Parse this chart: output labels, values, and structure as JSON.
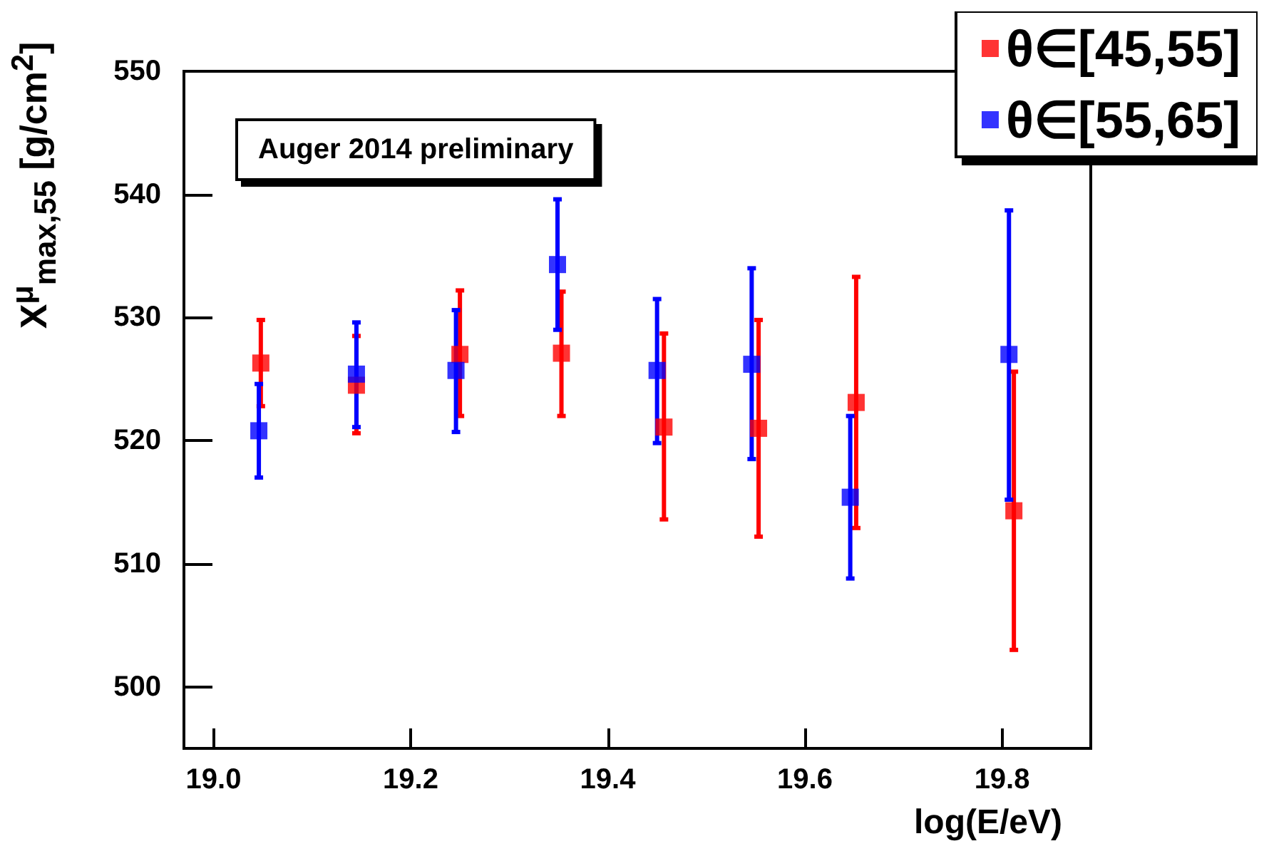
{
  "chart_data": {
    "type": "scatter",
    "xlabel": "log(E/eV)",
    "ylabel": "X$^{μ}$$_{max,55}$ [g/cm$^{2}$]",
    "annotations": [
      "Auger 2014 preliminary"
    ],
    "xlim": [
      18.97,
      19.89
    ],
    "ylim": [
      495,
      550
    ],
    "xticks": [
      {
        "value": 19.0,
        "label": "19.0"
      },
      {
        "value": 19.2,
        "label": "19.2"
      },
      {
        "value": 19.4,
        "label": "19.4"
      },
      {
        "value": 19.6,
        "label": "19.6"
      },
      {
        "value": 19.8,
        "label": "19.8"
      }
    ],
    "yticks": [
      500,
      510,
      520,
      530,
      540,
      550
    ],
    "grid": false,
    "legend": "top right",
    "marker": "square",
    "series": [
      {
        "name": "θ∈[45,55]",
        "color": "#ff0000",
        "x": [
          19.048,
          19.145,
          19.25,
          19.353,
          19.457,
          19.553,
          19.652,
          19.812
        ],
        "values": [
          526.3,
          524.5,
          527.0,
          527.1,
          521.1,
          521.0,
          523.1,
          514.3
        ],
        "errors": [
          [
            522.8,
            529.8
          ],
          [
            520.6,
            528.5
          ],
          [
            522.0,
            532.2
          ],
          [
            522.0,
            532.1
          ],
          [
            513.6,
            528.7
          ],
          [
            512.2,
            529.8
          ],
          [
            512.9,
            533.3
          ],
          [
            503.0,
            525.6
          ]
        ]
      },
      {
        "name": "θ∈[55,65]",
        "color": "#0000ff",
        "x": [
          19.046,
          19.145,
          19.246,
          19.349,
          19.45,
          19.546,
          19.646,
          19.807
        ],
        "values": [
          520.8,
          525.4,
          525.7,
          534.3,
          525.7,
          526.2,
          515.4,
          527.0
        ],
        "errors": [
          [
            517.0,
            524.6
          ],
          [
            521.1,
            529.6
          ],
          [
            520.7,
            530.6
          ],
          [
            529.0,
            539.6
          ],
          [
            519.8,
            531.5
          ],
          [
            518.5,
            534.0
          ],
          [
            508.8,
            522.0
          ],
          [
            515.2,
            538.7
          ]
        ]
      }
    ]
  }
}
